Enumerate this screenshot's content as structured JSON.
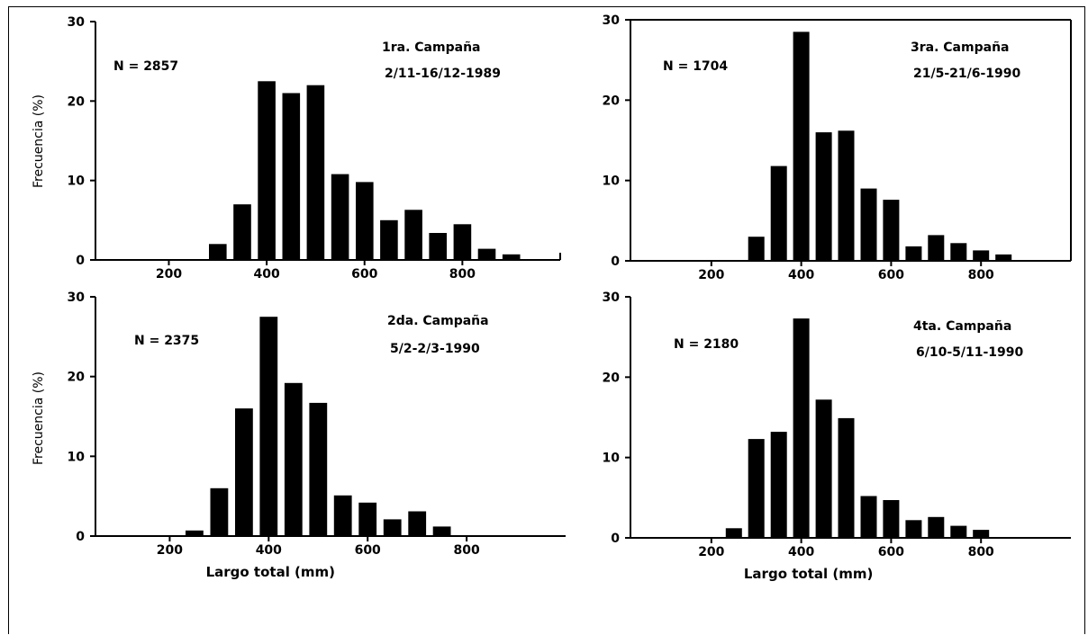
{
  "chart_data": [
    {
      "type": "bar",
      "annotations": {
        "n_label": "N = 2857",
        "campaign": "1ra. Campaña",
        "dates": "2/11-16/12-1989"
      },
      "ylabel": "Frecuencia (%)",
      "xlabel": "",
      "x_ticks": [
        "200",
        "400",
        "600",
        "800"
      ],
      "y_ticks": [
        "0",
        "10",
        "20",
        "30"
      ],
      "xlim": [
        50,
        1000
      ],
      "ylim": [
        0,
        30
      ],
      "categories": [
        300,
        350,
        400,
        450,
        500,
        550,
        600,
        650,
        700,
        750,
        800,
        850,
        900
      ],
      "values": [
        2.0,
        7.0,
        22.5,
        21.0,
        22.0,
        10.8,
        9.8,
        5.0,
        6.3,
        3.4,
        4.5,
        1.4,
        0.7
      ],
      "frame": "left-bottom-right"
    },
    {
      "type": "bar",
      "annotations": {
        "n_label": "N = 1704",
        "campaign": "3ra. Campaña",
        "dates": "21/5-21/6-1990"
      },
      "ylabel": "",
      "xlabel": "",
      "x_ticks": [
        "200",
        "400",
        "600",
        "800"
      ],
      "y_ticks": [
        "0",
        "10",
        "20",
        "30"
      ],
      "xlim": [
        20,
        1000
      ],
      "ylim": [
        0,
        30
      ],
      "categories": [
        300,
        350,
        400,
        450,
        500,
        550,
        600,
        650,
        700,
        750,
        800,
        850
      ],
      "values": [
        3.0,
        11.8,
        28.5,
        16.0,
        16.2,
        9.0,
        7.6,
        1.8,
        3.2,
        2.2,
        1.3,
        0.8
      ],
      "frame": "box"
    },
    {
      "type": "bar",
      "annotations": {
        "n_label": "N = 2375",
        "campaign": "2da. Campaña",
        "dates": "5/2-2/3-1990"
      },
      "ylabel": "Frecuencia (%)",
      "xlabel": "Largo total (mm)",
      "x_ticks": [
        "200",
        "400",
        "600",
        "800"
      ],
      "y_ticks": [
        "0",
        "10",
        "20",
        "30"
      ],
      "xlim": [
        50,
        1000
      ],
      "ylim": [
        0,
        30
      ],
      "categories": [
        250,
        300,
        350,
        400,
        450,
        500,
        550,
        600,
        650,
        700,
        750
      ],
      "values": [
        0.7,
        6.0,
        16.0,
        27.5,
        19.2,
        16.7,
        5.1,
        4.2,
        2.1,
        3.1,
        1.2
      ],
      "frame": "left-bottom"
    },
    {
      "type": "bar",
      "annotations": {
        "n_label": "N = 2180",
        "campaign": "4ta. Campaña",
        "dates": "6/10-5/11-1990"
      },
      "ylabel": "",
      "xlabel": "Largo total (mm)",
      "x_ticks": [
        "200",
        "400",
        "600",
        "800"
      ],
      "y_ticks": [
        "0",
        "10",
        "20",
        "30"
      ],
      "xlim": [
        20,
        1000
      ],
      "ylim": [
        0,
        30
      ],
      "categories": [
        250,
        300,
        350,
        400,
        450,
        500,
        550,
        600,
        650,
        700,
        750,
        800
      ],
      "values": [
        1.2,
        12.3,
        13.2,
        27.3,
        17.2,
        14.9,
        5.2,
        4.7,
        2.2,
        2.6,
        1.5,
        1.0
      ],
      "frame": "left-bottom"
    }
  ]
}
